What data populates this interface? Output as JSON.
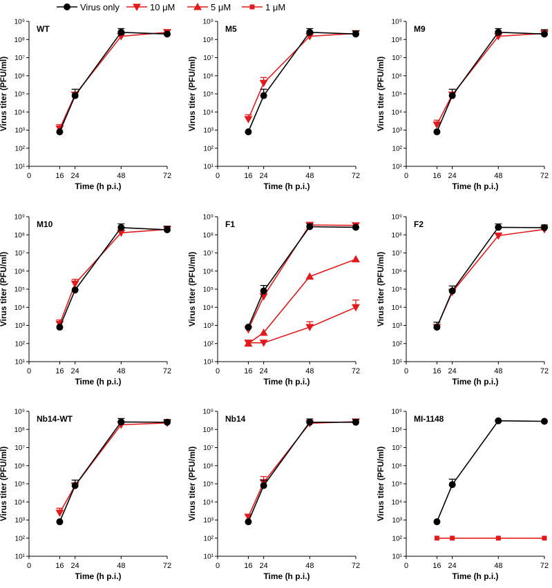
{
  "legend": [
    {
      "label": "Virus only",
      "marker": "circle",
      "color": "#000000"
    },
    {
      "label": "10 μM",
      "marker": "triangle-down",
      "color": "#e31a1c"
    },
    {
      "label": "5 μM",
      "marker": "triangle-up",
      "color": "#e31a1c"
    },
    {
      "label": "1 μM",
      "marker": "square",
      "color": "#e31a1c"
    }
  ],
  "axes": {
    "xlabel": "Time (h p.i.)",
    "ylabel": "Virus titer (PFU/ml)",
    "xticks": [
      "0",
      "16",
      "24",
      "48",
      "72"
    ],
    "yticks": [
      "10¹",
      "10²",
      "10³",
      "10⁴",
      "10⁵",
      "10⁶",
      "10⁷",
      "10⁸",
      "10⁹"
    ]
  },
  "chart_data": [
    {
      "type": "line",
      "title": "WT",
      "xlabel": "Time (h p.i.)",
      "ylabel": "Virus titer (PFU/ml)",
      "xlim": [
        0,
        72
      ],
      "ylim": [
        10,
        1000000000
      ],
      "yscale": "log",
      "grid": false,
      "x": [
        16,
        24,
        48,
        72
      ],
      "series": [
        {
          "name": "Virus only",
          "marker": "circle",
          "color": "#000000",
          "values": [
            800,
            80000,
            250000000,
            200000000
          ],
          "error": [
            null,
            180000,
            400000000,
            null
          ]
        },
        {
          "name": "10 μM",
          "marker": "triangle-down",
          "color": "#e31a1c",
          "values": [
            1200,
            90000,
            150000000,
            250000000
          ],
          "error": [
            2000,
            null,
            null,
            350000000
          ]
        }
      ]
    },
    {
      "type": "line",
      "title": "M5",
      "xlabel": "Time (h p.i.)",
      "ylabel": "Virus titer (PFU/ml)",
      "xlim": [
        0,
        72
      ],
      "ylim": [
        10,
        1000000000
      ],
      "yscale": "log",
      "grid": false,
      "x": [
        16,
        24,
        48,
        72
      ],
      "series": [
        {
          "name": "Virus only",
          "marker": "circle",
          "color": "#000000",
          "values": [
            800,
            80000,
            250000000,
            200000000
          ],
          "error": [
            null,
            180000,
            400000000,
            300000000
          ]
        },
        {
          "name": "10 μM",
          "marker": "triangle-down",
          "color": "#e31a1c",
          "values": [
            4000,
            400000,
            150000000,
            220000000
          ],
          "error": [
            7000,
            800000,
            null,
            null
          ]
        }
      ]
    },
    {
      "type": "line",
      "title": "M9",
      "xlabel": "Time (h p.i.)",
      "ylabel": "Virus titer (PFU/ml)",
      "xlim": [
        0,
        72
      ],
      "ylim": [
        10,
        1000000000
      ],
      "yscale": "log",
      "grid": false,
      "x": [
        16,
        24,
        48,
        72
      ],
      "series": [
        {
          "name": "Virus only",
          "marker": "circle",
          "color": "#000000",
          "values": [
            800,
            80000,
            250000000,
            200000000
          ],
          "error": [
            null,
            180000,
            400000000,
            350000000
          ]
        },
        {
          "name": "10 μM",
          "marker": "triangle-down",
          "color": "#e31a1c",
          "values": [
            2000,
            90000,
            150000000,
            220000000
          ],
          "error": [
            3500,
            null,
            null,
            null
          ]
        }
      ]
    },
    {
      "type": "line",
      "title": "M10",
      "xlabel": "Time (h p.i.)",
      "ylabel": "Virus titer (PFU/ml)",
      "xlim": [
        0,
        72
      ],
      "ylim": [
        10,
        1000000000
      ],
      "yscale": "log",
      "grid": false,
      "x": [
        16,
        24,
        48,
        72
      ],
      "series": [
        {
          "name": "Virus only",
          "marker": "circle",
          "color": "#000000",
          "values": [
            800,
            90000,
            250000000,
            190000000
          ],
          "error": [
            null,
            null,
            400000000,
            300000000
          ]
        },
        {
          "name": "10 μM",
          "marker": "triangle-down",
          "color": "#e31a1c",
          "values": [
            1200,
            200000,
            130000000,
            200000000
          ],
          "error": [
            2000,
            350000,
            null,
            null
          ]
        }
      ]
    },
    {
      "type": "line",
      "title": "F1",
      "xlabel": "Time (h p.i.)",
      "ylabel": "Virus titer (PFU/ml)",
      "xlim": [
        0,
        72
      ],
      "ylim": [
        10,
        1000000000
      ],
      "yscale": "log",
      "grid": false,
      "x": [
        16,
        24,
        48,
        72
      ],
      "series": [
        {
          "name": "Virus only",
          "marker": "circle",
          "color": "#000000",
          "values": [
            800,
            80000,
            280000000,
            260000000
          ],
          "error": [
            null,
            160000,
            400000000,
            null
          ]
        },
        {
          "name": "10 μM",
          "marker": "triangle-down",
          "color": "#e31a1c",
          "values": [
            600,
            40000,
            350000000,
            330000000
          ],
          "error": [
            null,
            null,
            null,
            null
          ]
        },
        {
          "name": "5 μM",
          "marker": "triangle-up",
          "color": "#e31a1c",
          "values": [
            100,
            400,
            500000,
            4500000
          ],
          "error": [
            null,
            null,
            null,
            null
          ]
        },
        {
          "name": "10 μM",
          "marker": "triangle-down",
          "color": "#e31a1c",
          "values": [
            110,
            110,
            800,
            10000
          ],
          "error": [
            null,
            null,
            1600,
            25000
          ]
        }
      ]
    },
    {
      "type": "line",
      "title": "F2",
      "xlabel": "Time (h p.i.)",
      "ylabel": "Virus titer (PFU/ml)",
      "xlim": [
        0,
        72
      ],
      "ylim": [
        10,
        1000000000
      ],
      "yscale": "log",
      "grid": false,
      "x": [
        16,
        24,
        48,
        72
      ],
      "series": [
        {
          "name": "Virus only",
          "marker": "circle",
          "color": "#000000",
          "values": [
            800,
            80000,
            260000000,
            250000000
          ],
          "error": [
            1500,
            150000,
            400000000,
            350000000
          ]
        },
        {
          "name": "10 μM",
          "marker": "triangle-down",
          "color": "#e31a1c",
          "values": [
            800,
            70000,
            90000000,
            200000000
          ],
          "error": [
            null,
            null,
            null,
            null
          ]
        }
      ]
    },
    {
      "type": "line",
      "title": "Nb14-WT",
      "xlabel": "Time (h p.i.)",
      "ylabel": "Virus titer (PFU/ml)",
      "xlim": [
        0,
        72
      ],
      "ylim": [
        10,
        1000000000
      ],
      "yscale": "log",
      "grid": false,
      "x": [
        16,
        24,
        48,
        72
      ],
      "series": [
        {
          "name": "Virus only",
          "marker": "circle",
          "color": "#000000",
          "values": [
            800,
            80000,
            260000000,
            250000000
          ],
          "error": [
            null,
            160000,
            400000000,
            350000000
          ]
        },
        {
          "name": "10 μM",
          "marker": "triangle-down",
          "color": "#e31a1c",
          "values": [
            2500,
            80000,
            180000000,
            230000000
          ],
          "error": [
            4500,
            null,
            null,
            null
          ]
        }
      ]
    },
    {
      "type": "line",
      "title": "Nb14",
      "xlabel": "Time (h p.i.)",
      "ylabel": "Virus titer (PFU/ml)",
      "xlim": [
        0,
        72
      ],
      "ylim": [
        10,
        1000000000
      ],
      "yscale": "log",
      "grid": false,
      "x": [
        16,
        24,
        48,
        72
      ],
      "series": [
        {
          "name": "Virus only",
          "marker": "circle",
          "color": "#000000",
          "values": [
            800,
            80000,
            250000000,
            250000000
          ],
          "error": [
            null,
            160000,
            380000000,
            350000000
          ]
        },
        {
          "name": "10 μM",
          "marker": "triangle-down",
          "color": "#e31a1c",
          "values": [
            1500,
            120000,
            220000000,
            270000000
          ],
          "error": [
            2000,
            250000,
            null,
            null
          ]
        }
      ]
    },
    {
      "type": "line",
      "title": "MI-1148",
      "xlabel": "Time (h p.i.)",
      "ylabel": "Virus titer (PFU/ml)",
      "xlim": [
        0,
        72
      ],
      "ylim": [
        10,
        1000000000
      ],
      "yscale": "log",
      "grid": false,
      "x": [
        16,
        24,
        48,
        72
      ],
      "series": [
        {
          "name": "Virus only",
          "marker": "circle",
          "color": "#000000",
          "values": [
            800,
            90000,
            300000000,
            280000000
          ],
          "error": [
            null,
            180000,
            null,
            null
          ]
        },
        {
          "name": "1 μM",
          "marker": "square",
          "color": "#e31a1c",
          "values": [
            100,
            100,
            100,
            100
          ],
          "error": [
            null,
            null,
            null,
            null
          ]
        }
      ]
    }
  ]
}
